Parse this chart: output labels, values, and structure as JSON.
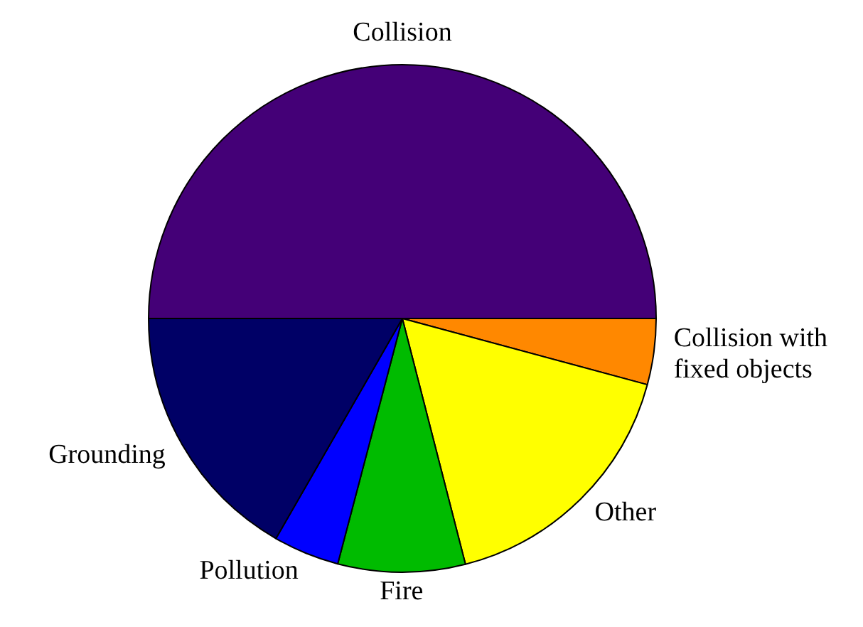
{
  "chart_data": {
    "type": "pie",
    "categories": [
      "Collision",
      "Collision with fixed objects",
      "Other",
      "Fire",
      "Pollution",
      "Grounding"
    ],
    "values": [
      50,
      4.2,
      16.8,
      8.1,
      4.2,
      16.7
    ],
    "colors": [
      "#440077",
      "#ff8800",
      "#ffff00",
      "#00bb00",
      "#0000ff",
      "#000066"
    ],
    "legend": false
  }
}
